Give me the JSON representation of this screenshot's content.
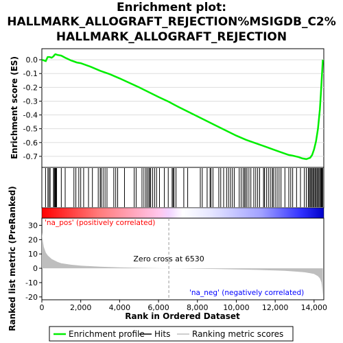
{
  "title": {
    "line1": "Enrichment plot:",
    "line2": "HALLMARK_ALLOGRAFT_REJECTION%MSIGDB_C2%",
    "line3": "HALLMARK_ALLOGRAFT_REJECTION"
  },
  "chart_data": {
    "type": "line",
    "es_panel": {
      "ylabel": "Enrichment score (ES)",
      "ylim": [
        -0.78,
        0.08
      ],
      "yticks": [
        {
          "v": 0.0,
          "label": "0.0"
        },
        {
          "v": -0.1,
          "label": "-0.1"
        },
        {
          "v": -0.2,
          "label": "-0.2"
        },
        {
          "v": -0.3,
          "label": "-0.3"
        },
        {
          "v": -0.4,
          "label": "-0.4"
        },
        {
          "v": -0.5,
          "label": "-0.5"
        },
        {
          "v": -0.6,
          "label": "-0.6"
        },
        {
          "v": -0.7,
          "label": "-0.7"
        }
      ],
      "series": [
        {
          "name": "Enrichment profile",
          "color": "#00ee00",
          "x": [
            0,
            200,
            300,
            400,
            500,
            600,
            650,
            700,
            800,
            1000,
            1200,
            1500,
            1800,
            2000,
            2500,
            3000,
            3500,
            4000,
            5000,
            6000,
            6530,
            7000,
            8000,
            9000,
            10000,
            10500,
            11000,
            11500,
            12000,
            12500,
            12700,
            12900,
            13200,
            13400,
            13600,
            13800,
            13900,
            14000,
            14100,
            14200,
            14300,
            14350,
            14400,
            14450
          ],
          "y": [
            0.0,
            -0.01,
            0.02,
            0.02,
            0.015,
            0.025,
            0.035,
            0.04,
            0.035,
            0.03,
            0.015,
            -0.005,
            -0.02,
            -0.025,
            -0.05,
            -0.08,
            -0.105,
            -0.135,
            -0.2,
            -0.27,
            -0.305,
            -0.34,
            -0.41,
            -0.48,
            -0.55,
            -0.58,
            -0.605,
            -0.63,
            -0.655,
            -0.68,
            -0.69,
            -0.695,
            -0.705,
            -0.715,
            -0.72,
            -0.71,
            -0.69,
            -0.65,
            -0.59,
            -0.5,
            -0.36,
            -0.25,
            -0.12,
            0.0
          ]
        }
      ]
    },
    "hits_panel": {
      "legend_name": "Hits",
      "positions": [
        190,
        310,
        370,
        430,
        600,
        640,
        680,
        700,
        730,
        760,
        1000,
        1200,
        1650,
        1750,
        1900,
        2000,
        2150,
        2400,
        2600,
        2900,
        3000,
        3050,
        3150,
        3250,
        3350,
        3700,
        3800,
        3900,
        4250,
        4750,
        4850,
        5150,
        5250,
        5350,
        5420,
        5500,
        5550,
        5600,
        5700,
        5800,
        5900,
        6050,
        6300,
        6500,
        6700,
        6750,
        6800,
        6900,
        7300,
        7500,
        8150,
        8250,
        8500,
        8650,
        8700,
        8800,
        9100,
        9200,
        9350,
        9500,
        9600,
        9700,
        9800,
        9900,
        10150,
        10250,
        10350,
        10420,
        10480,
        10550,
        10650,
        10750,
        10900,
        11000,
        11100,
        11200,
        11400,
        11450,
        11550,
        11650,
        11750,
        11850,
        11900,
        12000,
        12100,
        12200,
        12300,
        12500,
        12700,
        12800,
        12900,
        13100,
        13300,
        13500,
        13600,
        13700,
        13750,
        13800,
        13850,
        13900,
        13950,
        14000,
        14050,
        14100,
        14150,
        14200,
        14250,
        14300,
        14350,
        14380,
        14400,
        14420,
        14440
      ]
    },
    "metric_panel": {
      "ylabel": "Ranked list metric (PreRanked)",
      "xlabel": "Rank in Ordered Dataset",
      "ylim": [
        -22,
        35
      ],
      "xlim": [
        0,
        14500
      ],
      "yticks": [
        {
          "v": 30,
          "label": "30"
        },
        {
          "v": 20,
          "label": "20"
        },
        {
          "v": 10,
          "label": "10"
        },
        {
          "v": 0,
          "label": "0"
        },
        {
          "v": -10,
          "label": "-10"
        },
        {
          "v": -20,
          "label": "-20"
        }
      ],
      "xticks": [
        {
          "v": 0,
          "label": "0"
        },
        {
          "v": 2000,
          "label": "2,000"
        },
        {
          "v": 4000,
          "label": "4,000"
        },
        {
          "v": 6000,
          "label": "6,000"
        },
        {
          "v": 8000,
          "label": "8,000"
        },
        {
          "v": 10000,
          "label": "10,000"
        },
        {
          "v": 12000,
          "label": "12,000"
        },
        {
          "v": 14000,
          "label": "14,000"
        }
      ],
      "series": [
        {
          "name": "Ranking metric scores",
          "color": "#bebebe",
          "x": [
            0,
            20,
            50,
            100,
            200,
            300,
            500,
            800,
            1000,
            1500,
            2000,
            3000,
            4000,
            5000,
            6000,
            6530,
            7000,
            8000,
            9000,
            10000,
            11000,
            12000,
            12500,
            13000,
            13500,
            13800,
            14000,
            14200,
            14300,
            14380,
            14420,
            14450
          ],
          "y": [
            25,
            22,
            19,
            15,
            11,
            9,
            6.5,
            4.5,
            3.5,
            2.5,
            1.8,
            1.1,
            0.6,
            0.3,
            0.1,
            0.0,
            -0.1,
            -0.3,
            -0.5,
            -0.8,
            -1.1,
            -1.5,
            -1.8,
            -2.2,
            -2.8,
            -3.4,
            -4.0,
            -5.5,
            -7.0,
            -10.0,
            -14.0,
            -19.0
          ]
        }
      ],
      "zero_cross": {
        "x": 6530,
        "label": "Zero cross at 6530"
      },
      "pos_label": "'na_pos' (positively correlated)",
      "neg_label": "'na_neg' (negatively correlated)"
    },
    "legend": {
      "items": [
        {
          "label": "Enrichment profile",
          "color": "#00ee00"
        },
        {
          "label": "Hits",
          "color": "#000000"
        },
        {
          "label": "Ranking metric scores",
          "color": "#bebebe"
        }
      ]
    }
  }
}
